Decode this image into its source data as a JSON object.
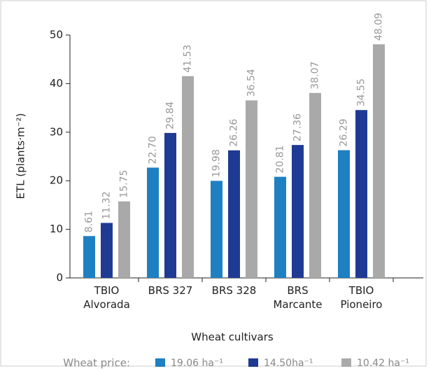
{
  "chart_data": {
    "type": "bar",
    "ylabel": "ETL (plants·m⁻²)",
    "xlabel": "Wheat cultivars",
    "legend_title": "Wheat price:",
    "categories": [
      "TBIO Alvorada",
      "BRS 327",
      "BRS 328",
      "BRS Marcante",
      "TBIO Pioneiro"
    ],
    "series": [
      {
        "name": "19.06 ha⁻¹",
        "color": "#1f7fc3",
        "values": [
          8.61,
          22.7,
          19.98,
          20.81,
          26.29
        ],
        "value_labels": [
          "8.61",
          "22.70",
          "19.98",
          "20.81",
          "26.29"
        ]
      },
      {
        "name": "14.50ha⁻¹",
        "color": "#1f3a93",
        "values": [
          11.32,
          29.84,
          26.26,
          27.36,
          34.55
        ],
        "value_labels": [
          "11.32",
          "29.84",
          "26.26",
          "27.36",
          "34.55"
        ]
      },
      {
        "name": "10.42 ha⁻¹",
        "color": "#a9a9a9",
        "values": [
          15.75,
          41.53,
          36.54,
          38.07,
          48.09
        ],
        "value_labels": [
          "15.75",
          "41.53",
          "36.54",
          "38.07",
          "48.09"
        ]
      }
    ],
    "ylim": [
      0,
      50
    ],
    "yticks": [
      0,
      10,
      20,
      30,
      40,
      50
    ]
  }
}
